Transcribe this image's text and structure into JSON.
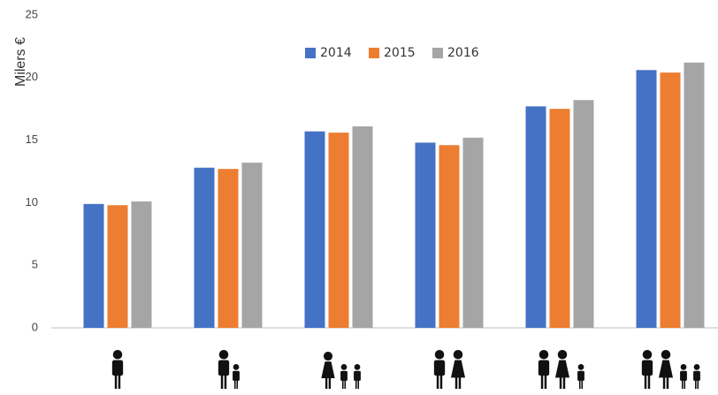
{
  "chart_data": {
    "type": "bar",
    "ylabel": "Milers €",
    "ylim": [
      0,
      25
    ],
    "yticks": [
      0,
      5,
      10,
      15,
      20,
      25
    ],
    "grid": false,
    "legend_position": "top",
    "categories": [
      "1 adult",
      "1 adult + child",
      "1 adult + 2 children",
      "2 adults",
      "2 adults + 1 child",
      "2 adults + 2 children"
    ],
    "category_icons": [
      "person-icon",
      "adult-child-icon",
      "adult-two-children-icon",
      "two-adults-icon",
      "two-adults-child-icon",
      "two-adults-two-children-icon"
    ],
    "series": [
      {
        "name": "2014",
        "color": "#4472C4",
        "values": [
          9.9,
          12.8,
          15.7,
          14.8,
          17.7,
          20.6
        ]
      },
      {
        "name": "2015",
        "color": "#ED7D31",
        "values": [
          9.8,
          12.7,
          15.6,
          14.6,
          17.5,
          20.4
        ]
      },
      {
        "name": "2016",
        "color": "#A5A5A5",
        "values": [
          10.1,
          13.2,
          16.1,
          15.2,
          18.2,
          21.2
        ]
      }
    ]
  }
}
